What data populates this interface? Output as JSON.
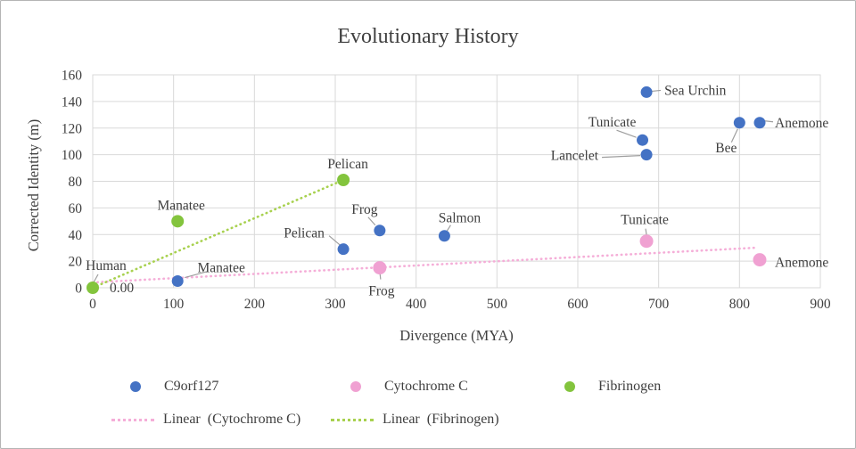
{
  "window": {
    "background": "#ffffff",
    "border_color": "#b4b4b4"
  },
  "chart_data": {
    "type": "scatter",
    "title": "Evolutionary History",
    "xlabel": "Divergence (MYA)",
    "ylabel": "Corrected Identity (m)",
    "xlim": [
      0,
      900
    ],
    "ylim": [
      0,
      160
    ],
    "xticks": [
      0,
      100,
      200,
      300,
      400,
      500,
      600,
      700,
      800,
      900
    ],
    "yticks": [
      0,
      20,
      40,
      60,
      80,
      100,
      120,
      140,
      160
    ],
    "grid": true,
    "legend_position": "bottom",
    "colors": {
      "text": "#3f3f3f",
      "grid": "#d9d9d9",
      "leader": "#9e9e9e"
    },
    "series": [
      {
        "name": "C9orf127",
        "color": "#4472c4",
        "marker_radius": 6.5,
        "points": [
          {
            "x": 105,
            "y": 5,
            "label": "Manatee",
            "label_dx": 49,
            "label_dy": -10,
            "anchor": "middle",
            "leader": [
              8,
              -4,
              34,
              -11
            ]
          },
          {
            "x": 310,
            "y": 29,
            "label": "Pelican",
            "label_dx": -44,
            "label_dy": -13,
            "anchor": "middle",
            "leader": [
              -16,
              -15,
              -3,
              -4
            ]
          },
          {
            "x": 355,
            "y": 43,
            "label": "Frog",
            "label_dx": -17,
            "label_dy": -19,
            "anchor": "middle",
            "leader": [
              -13,
              -15,
              -5,
              -6
            ]
          },
          {
            "x": 435,
            "y": 39,
            "label": "Salmon",
            "label_dx": 17,
            "label_dy": -15,
            "anchor": "middle",
            "leader": [
              7,
              -12,
              2,
              -4
            ]
          },
          {
            "x": 685,
            "y": 100,
            "label": "Lancelet",
            "label_dx": -54,
            "label_dy": 6,
            "anchor": "end",
            "leader": [
              -50,
              3,
              -7,
              1
            ]
          },
          {
            "x": 680,
            "y": 111,
            "label": "Tunicate",
            "label_dx": -34,
            "label_dy": -15,
            "anchor": "middle",
            "leader": [
              -29,
              -11,
              -7,
              -3
            ]
          },
          {
            "x": 685,
            "y": 147,
            "label": "Sea Urchin",
            "label_dx": 20,
            "label_dy": 3,
            "anchor": "start",
            "leader": [
              16,
              -2,
              6,
              -1
            ]
          },
          {
            "x": 800,
            "y": 124,
            "label": "Bee",
            "label_dx": -15,
            "label_dy": 33,
            "anchor": "middle",
            "leader": [
              -9,
              22,
              -2,
              7
            ]
          },
          {
            "x": 825,
            "y": 124,
            "label": "Anemone",
            "label_dx": 17,
            "label_dy": 5,
            "anchor": "start",
            "leader": [
              6,
              -2,
              15,
              -1
            ]
          }
        ]
      },
      {
        "name": "Cytochrome C",
        "color": "#f0a1d2",
        "marker_radius": 7.5,
        "points": [
          {
            "x": 355,
            "y": 15,
            "label": "Frog",
            "label_dx": 2,
            "label_dy": 31,
            "anchor": "middle",
            "leader": [
              0,
              4,
              1,
              13
            ]
          },
          {
            "x": 685,
            "y": 35,
            "label": "Tunicate",
            "label_dx": -2,
            "label_dy": -19,
            "anchor": "middle",
            "leader": [
              -1,
              -14,
              0,
              -7
            ]
          },
          {
            "x": 825,
            "y": 21,
            "label": "Anemone",
            "label_dx": 17,
            "label_dy": 8,
            "anchor": "start"
          }
        ]
      },
      {
        "name": "Fibrinogen",
        "color": "#83c43d",
        "marker_radius": 7,
        "points": [
          {
            "x": 0,
            "y": 0,
            "label": "Human",
            "label_dx": 15,
            "label_dy": -20,
            "anchor": "middle",
            "leader": [
              6,
              -15,
              1,
              -6
            ],
            "value_label": "0.00",
            "value_dx": 19,
            "value_dy": 5
          },
          {
            "x": 105,
            "y": 50,
            "label": "Manatee",
            "label_dx": 4,
            "label_dy": -13,
            "anchor": "middle"
          },
          {
            "x": 310,
            "y": 81,
            "label": "Pelican",
            "label_dx": 5,
            "label_dy": -13,
            "anchor": "middle"
          }
        ]
      }
    ],
    "trendlines": [
      {
        "name": "Linear (Cytochrome C)",
        "legend_label": "Linear  (Cytochrome C)",
        "color": "#f5aed8",
        "x1": 0,
        "y1": 4,
        "x2": 818,
        "y2": 30
      },
      {
        "name": "Linear (Fibrinogen)",
        "legend_label": "Linear  (Fibrinogen)",
        "color": "#a8d14f",
        "x1": 0,
        "y1": 0,
        "x2": 310,
        "y2": 81
      }
    ]
  }
}
